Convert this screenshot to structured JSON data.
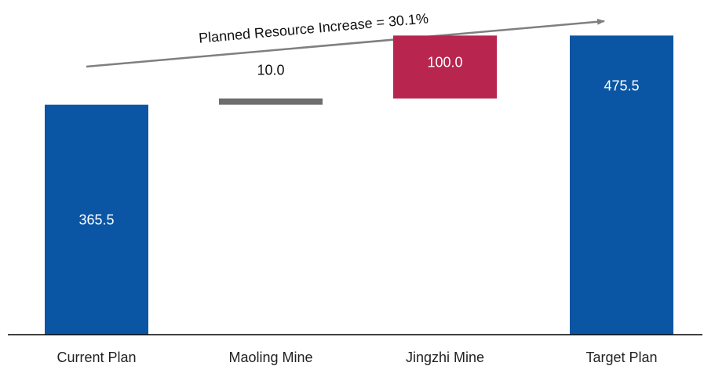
{
  "chart_data": {
    "type": "waterfall",
    "title": "",
    "xlabel": "",
    "ylabel": "",
    "ylim": [
      0,
      532
    ],
    "categories": [
      "Current Plan",
      "Maoling Mine",
      "Jingzhi Mine",
      "Target Plan"
    ],
    "bars": [
      {
        "category": "Current Plan",
        "kind": "total",
        "value": 365.5,
        "label": "365.5",
        "color": "#0B56A4"
      },
      {
        "category": "Maoling Mine",
        "kind": "increment",
        "value": 10.0,
        "label": "10.0",
        "color": "#6E6E6E"
      },
      {
        "category": "Jingzhi Mine",
        "kind": "increment",
        "value": 100.0,
        "label": "100.0",
        "color": "#B8254F"
      },
      {
        "category": "Target Plan",
        "kind": "total",
        "value": 475.5,
        "label": "475.5",
        "color": "#0B56A4"
      }
    ],
    "annotation": {
      "text": "Planned Resource Increase = 30.1%",
      "color": "#7F7F7F"
    },
    "grid": false,
    "legend": "none"
  }
}
